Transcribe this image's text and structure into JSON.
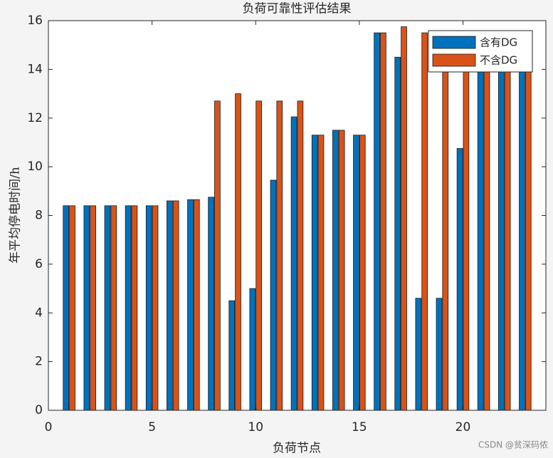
{
  "chart_data": {
    "type": "bar",
    "title": "负荷可靠性评估结果",
    "x_label": "负荷节点",
    "y_label": "年平均停电时间/h",
    "x": [
      1,
      2,
      3,
      4,
      5,
      6,
      7,
      8,
      9,
      10,
      11,
      12,
      13,
      14,
      15,
      16,
      17,
      18,
      19,
      20,
      21,
      22,
      23
    ],
    "series": [
      {
        "name": "含有DG",
        "color": "#0072bd",
        "values": [
          8.4,
          8.4,
          8.4,
          8.4,
          8.4,
          8.6,
          8.65,
          8.75,
          4.5,
          5.0,
          9.45,
          12.05,
          11.3,
          11.5,
          11.3,
          15.5,
          14.5,
          4.6,
          4.6,
          10.75,
          15.5,
          15.5,
          15.5
        ]
      },
      {
        "name": "不含DG",
        "color": "#d95319",
        "values": [
          8.4,
          8.4,
          8.4,
          8.4,
          8.4,
          8.6,
          8.65,
          12.7,
          13.0,
          12.7,
          12.7,
          12.7,
          11.3,
          11.5,
          11.3,
          15.5,
          15.75,
          15.5,
          15.5,
          15.5,
          15.5,
          15.5,
          15.5
        ]
      }
    ],
    "xlim": [
      0,
      24
    ],
    "xticks": [
      0,
      5,
      10,
      15,
      20
    ],
    "ylim": [
      0,
      16
    ],
    "yticks": [
      0,
      2,
      4,
      6,
      8,
      10,
      12,
      14,
      16
    ],
    "legend": "top-right",
    "watermark": "CSDN @贫深码侬"
  }
}
